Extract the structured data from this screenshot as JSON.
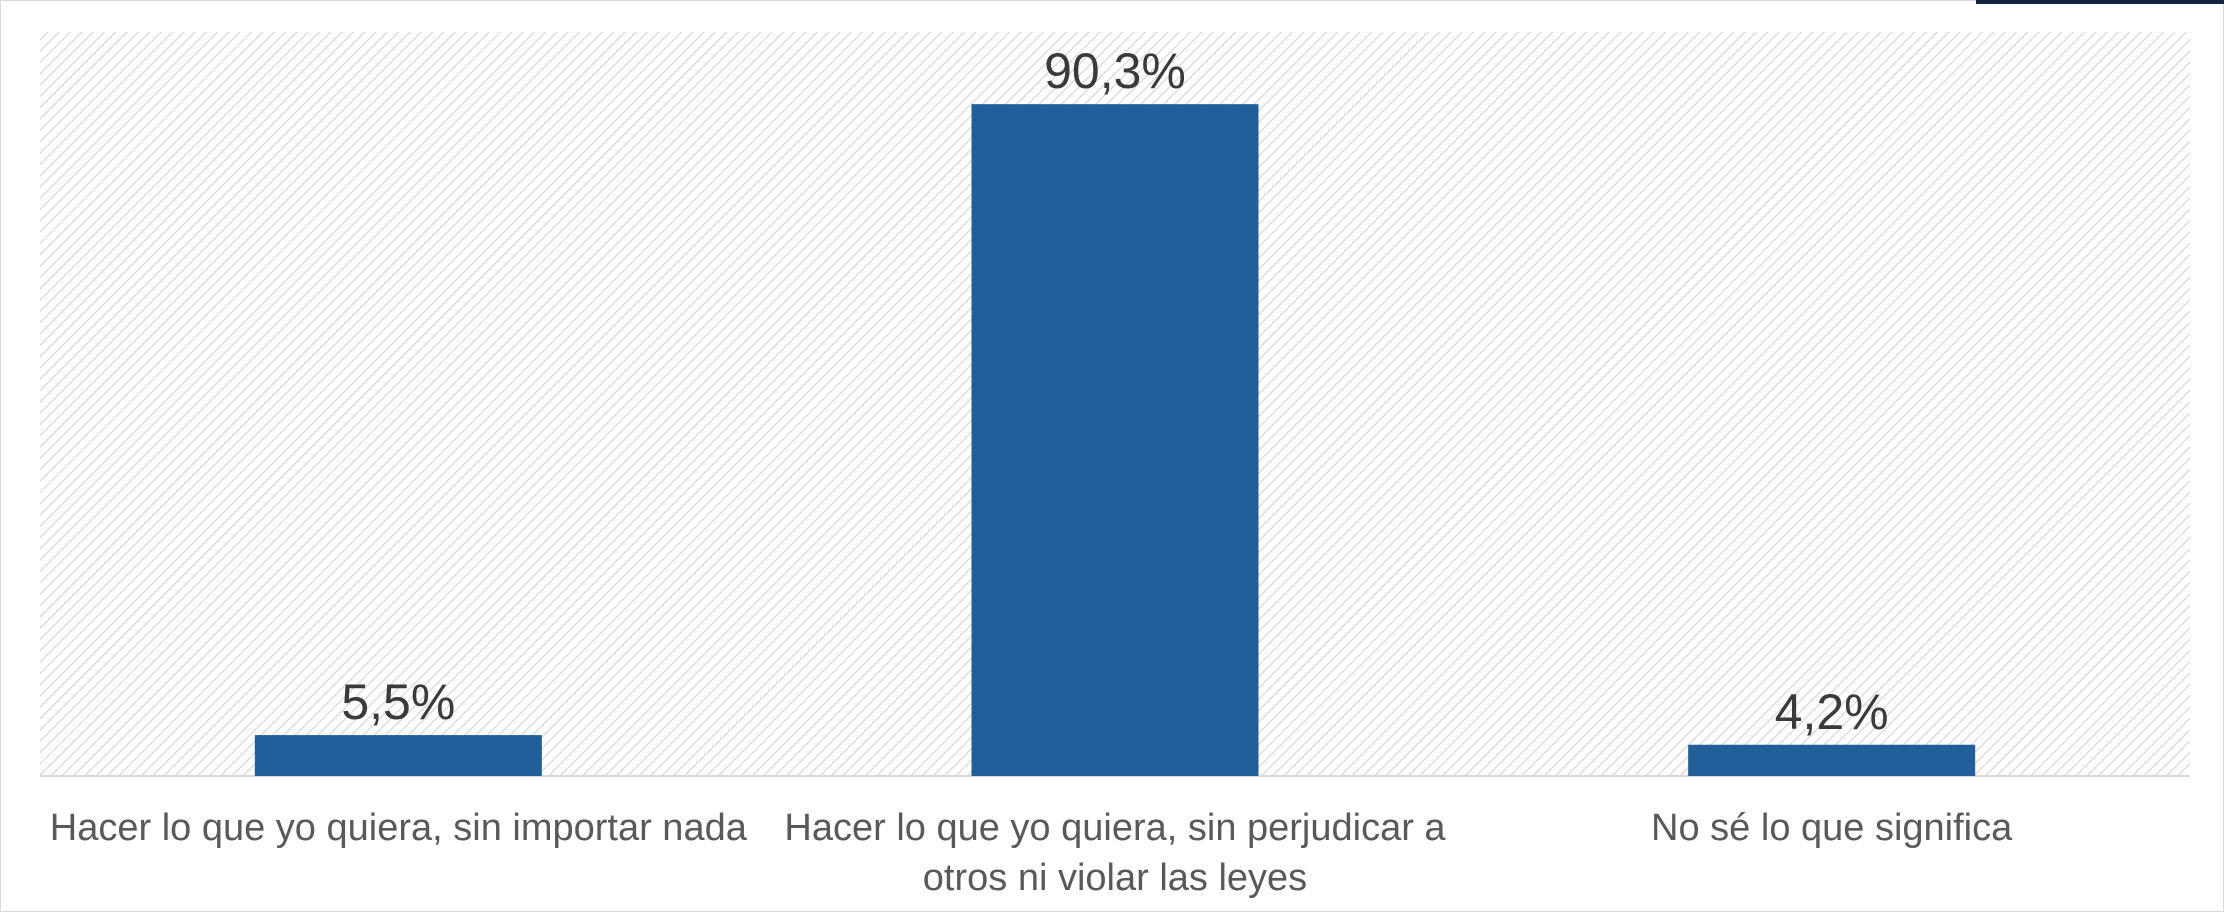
{
  "chart_data": {
    "type": "bar",
    "title": "",
    "xlabel": "",
    "ylabel": "",
    "categories": [
      [
        "Hacer lo que yo quiera, sin importar nada"
      ],
      [
        "Hacer lo que yo quiera, sin perjudicar a",
        "otros ni violar las leyes"
      ],
      [
        "No sé lo que significa"
      ]
    ],
    "values": [
      5.5,
      90.3,
      4.2
    ],
    "value_labels": [
      "5,5%",
      "90,3%",
      "4,2%"
    ],
    "ylim": [
      0,
      100
    ],
    "grid": false,
    "legend": "none",
    "colors": {
      "bar": "#215f9a",
      "background_hatch": "#cfcfcf",
      "axis": "#d9d9d9",
      "label_text": "#595959",
      "value_text": "#3a3a3a",
      "accent": "#0f2743"
    }
  }
}
